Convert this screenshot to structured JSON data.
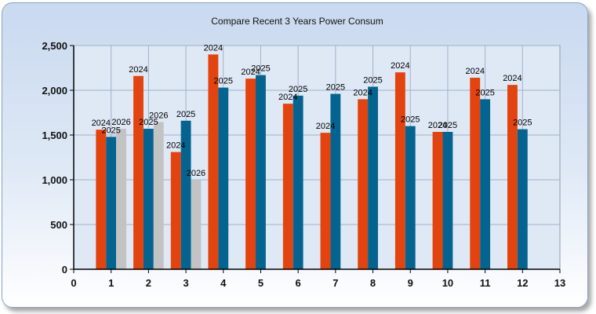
{
  "chart_data": {
    "type": "bar",
    "title": "Compare Recent 3 Years Power Consum",
    "xlabel": "",
    "ylabel": "",
    "x": [
      1,
      2,
      3,
      4,
      5,
      6,
      7,
      8,
      9,
      10,
      11,
      12
    ],
    "xlim": [
      0,
      13
    ],
    "x_ticks": [
      "0",
      "1",
      "2",
      "3",
      "4",
      "5",
      "6",
      "7",
      "8",
      "9",
      "10",
      "11",
      "12",
      "13"
    ],
    "ylim": [
      0,
      2500
    ],
    "y_ticks": [
      "0",
      "500",
      "1,000",
      "1,500",
      "2,000",
      "2,500"
    ],
    "y_tick_values": [
      0,
      500,
      1000,
      1500,
      2000,
      2500
    ],
    "grid": true,
    "series": [
      {
        "name": "2024",
        "color": "#e2430f",
        "values": [
          1560,
          2160,
          1310,
          2400,
          2130,
          1850,
          1525,
          1900,
          2200,
          1535,
          2140,
          2060
        ]
      },
      {
        "name": "2025",
        "color": "#05648f",
        "values": [
          1480,
          1570,
          1660,
          2030,
          2170,
          1940,
          1960,
          2040,
          1600,
          1535,
          1900,
          1565
        ]
      },
      {
        "name": "2026",
        "color": "#c3c3c3",
        "values": [
          1570,
          1645,
          1000,
          null,
          null,
          null,
          null,
          null,
          null,
          null,
          null,
          null
        ]
      }
    ]
  }
}
